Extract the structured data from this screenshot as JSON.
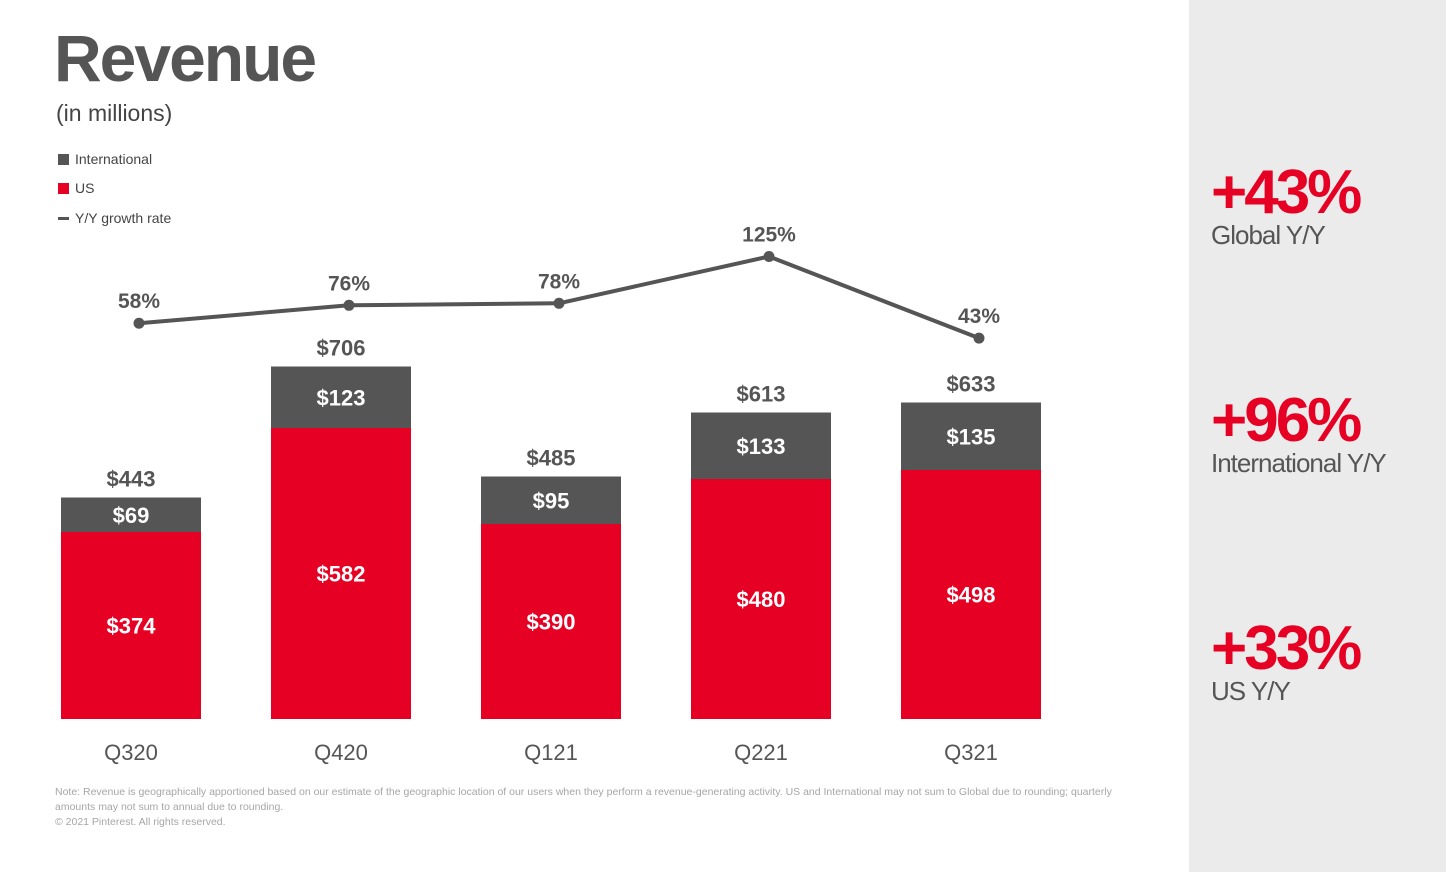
{
  "title": "Revenue",
  "subtitle": "(in millions)",
  "legend": [
    {
      "label": "International",
      "color": "#555555"
    },
    {
      "label": "US",
      "color": "#e60023"
    },
    {
      "label": "Y/Y growth rate",
      "color": "#555555"
    }
  ],
  "chart_data": {
    "type": "bar",
    "stacked": true,
    "categories": [
      "Q320",
      "Q420",
      "Q121",
      "Q221",
      "Q321"
    ],
    "series": [
      {
        "name": "US",
        "color": "#e60023",
        "values": [
          374,
          582,
          390,
          480,
          498
        ],
        "labels": [
          "$374",
          "$582",
          "$390",
          "$480",
          "$498"
        ]
      },
      {
        "name": "International",
        "color": "#555555",
        "values": [
          69,
          123,
          95,
          133,
          135
        ],
        "labels": [
          "$69",
          "$123",
          "$95",
          "$133",
          "$135"
        ]
      }
    ],
    "totals": [
      443,
      706,
      485,
      613,
      633
    ],
    "total_labels": [
      "$443",
      "$706",
      "$485",
      "$613",
      "$633"
    ],
    "growth": {
      "name": "Y/Y growth rate",
      "type": "line",
      "values": [
        58,
        76,
        78,
        125,
        43
      ],
      "labels": [
        "58%",
        "76%",
        "78%",
        "125%",
        "43%"
      ]
    },
    "ylim": [
      0,
      800
    ],
    "title": "Revenue",
    "ylabel": "(in millions)"
  },
  "footnote": {
    "line1": "Note: Revenue is geographically apportioned based on our estimate of the geographic location of our users when they perform a revenue-generating activity. US and International may not sum to Global due to rounding; quarterly amounts may not sum to annual due to rounding.",
    "line2": "© 2021 Pinterest. All rights reserved."
  },
  "kpis": [
    {
      "value": "+43%",
      "label": "Global Y/Y"
    },
    {
      "value": "+96%",
      "label": "International Y/Y"
    },
    {
      "value": "+33%",
      "label": "US Y/Y"
    }
  ],
  "colors": {
    "accent": "#e60023",
    "dark": "#555555",
    "panel": "#ebebeb"
  }
}
